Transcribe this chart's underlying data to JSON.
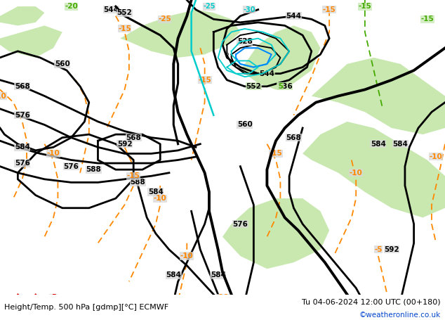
{
  "title_left": "Height/Temp. 500 hPa [gdmp][°C] ECMWF",
  "title_right": "Tu 04-06-2024 12:00 UTC (00+180)",
  "credit": "©weatheronline.co.uk",
  "bg_gray": "#d8d8d8",
  "bg_green": "#c8e8b0",
  "z500_color": "#000000",
  "temp_orange_color": "#ff8800",
  "temp_green_color": "#44aa00",
  "z850_cyan_color": "#00cccc",
  "z850_blue_color": "#0088ff",
  "slp_red_color": "#dd0000",
  "lw_main": 2.0,
  "lw_thick": 2.8,
  "lw_thin": 1.4,
  "lw_temp": 1.3,
  "lw_cyan": 1.3,
  "label_fs": 7.5,
  "title_fs": 8.0,
  "credit_fs": 7.5
}
